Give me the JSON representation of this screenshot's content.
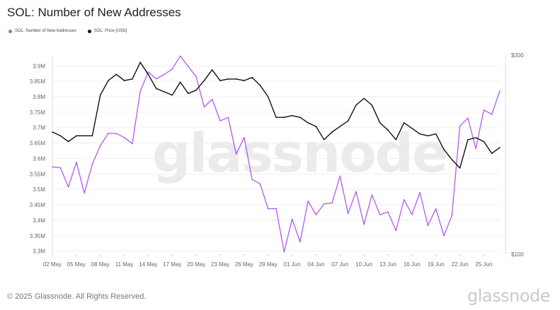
{
  "header": {
    "title": "SOL: Number of New Addresses"
  },
  "legend": [
    {
      "label": "SOL: Number of New Addresses",
      "color": "#b35af0"
    },
    {
      "label": "SOL: Price [USD]",
      "color": "#111111"
    }
  ],
  "watermark": "glassnode",
  "footer": {
    "copyright": "© 2025 Glassnode. All Rights Reserved.",
    "logo": "glassnode"
  },
  "chart_data": {
    "type": "line",
    "title": "SOL: Number of New Addresses",
    "x": [
      "02 May",
      "03 May",
      "04 May",
      "05 May",
      "06 May",
      "07 May",
      "08 May",
      "09 May",
      "10 May",
      "11 May",
      "12 May",
      "13 May",
      "14 May",
      "15 May",
      "16 May",
      "17 May",
      "18 May",
      "19 May",
      "20 May",
      "21 May",
      "22 May",
      "23 May",
      "24 May",
      "25 May",
      "26 May",
      "27 May",
      "28 May",
      "29 May",
      "30 May",
      "31 May",
      "01 Jun",
      "02 Jun",
      "03 Jun",
      "04 Jun",
      "05 Jun",
      "06 Jun",
      "07 Jun",
      "08 Jun",
      "09 Jun",
      "10 Jun",
      "11 Jun",
      "12 Jun",
      "13 Jun",
      "14 Jun",
      "15 Jun",
      "16 Jun",
      "17 Jun",
      "18 Jun",
      "19 Jun",
      "20 Jun",
      "21 Jun",
      "22 Jun",
      "23 Jun",
      "24 Jun",
      "25 Jun",
      "26 Jun",
      "27 Jun"
    ],
    "x_ticks": [
      "02 May",
      "05 May",
      "08 May",
      "11 May",
      "14 May",
      "17 May",
      "20 May",
      "23 May",
      "26 May",
      "29 May",
      "01 Jun",
      "04 Jun",
      "07 Jun",
      "10 Jun",
      "13 Jun",
      "16 Jun",
      "19 Jun",
      "22 Jun",
      "25 Jun"
    ],
    "y_left": {
      "ticks": [
        "3.3M",
        "3.35M",
        "3.4M",
        "3.45M",
        "3.5M",
        "3.55M",
        "3.6M",
        "3.65M",
        "3.7M",
        "3.75M",
        "3.8M",
        "3.85M",
        "3.9M"
      ],
      "ylim": [
        3290000,
        3935000
      ]
    },
    "y_right": {
      "ticks": [
        "$100",
        "$200"
      ],
      "ylim": [
        100,
        200
      ],
      "scale": "log"
    },
    "series": [
      {
        "name": "SOL: Number of New Addresses",
        "color": "#b35af0",
        "axis": "left",
        "values": [
          3573000,
          3570000,
          3508000,
          3588000,
          3488000,
          3582000,
          3642000,
          3682000,
          3681000,
          3668000,
          3648000,
          3818000,
          3880000,
          3858000,
          3872000,
          3890000,
          3932000,
          3898000,
          3865000,
          3767000,
          3792000,
          3722000,
          3733000,
          3614000,
          3668000,
          3532000,
          3518000,
          3437000,
          3438000,
          3297000,
          3404000,
          3330000,
          3462000,
          3418000,
          3453000,
          3456000,
          3543000,
          3422000,
          3493000,
          3387000,
          3482000,
          3418000,
          3427000,
          3366000,
          3467000,
          3419000,
          3490000,
          3383000,
          3437000,
          3350000,
          3415000,
          3705000,
          3731000,
          3632000,
          3757000,
          3743000,
          3819000
        ]
      },
      {
        "name": "SOL: Price [USD]",
        "color": "#111111",
        "axis": "right",
        "values": [
          153,
          151,
          148,
          151,
          151,
          151,
          174,
          183,
          187,
          183,
          184,
          195,
          187,
          178,
          176,
          174,
          182,
          175,
          177,
          183,
          190,
          183,
          184,
          184,
          183,
          185,
          180,
          173,
          161,
          161,
          162,
          161,
          158,
          156,
          149,
          153,
          156,
          159,
          168,
          172,
          168,
          158,
          154,
          149,
          158,
          155,
          152,
          151,
          152,
          144,
          139,
          135,
          149,
          150,
          148,
          142,
          145
        ]
      }
    ]
  }
}
